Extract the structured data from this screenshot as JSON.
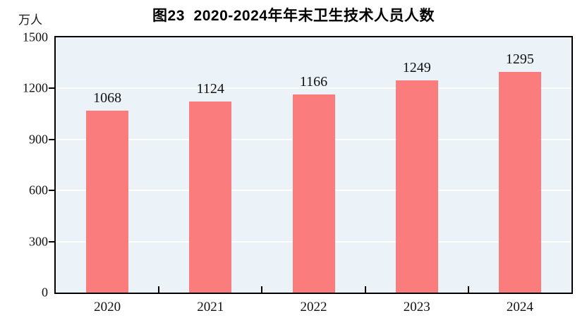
{
  "page": {
    "title": "图23  2020-2024年年末卫生技术人员人数",
    "unit_label": "万人"
  },
  "chart_data": {
    "type": "bar",
    "title": "图23  2020-2024年年末卫生技术人员人数",
    "ylabel": "万人",
    "xlabel": "",
    "categories": [
      "2020",
      "2021",
      "2022",
      "2023",
      "2024"
    ],
    "values": [
      1068,
      1124,
      1166,
      1249,
      1295
    ],
    "ylim": [
      0,
      1500
    ],
    "yticks": [
      0,
      300,
      600,
      900,
      1200,
      1500
    ],
    "grid": true,
    "legend": "none",
    "colors": {
      "bar": "#FB7C7C",
      "plot_background": "#EBF2F8",
      "gridline": "#FFFFFF",
      "axis": "#000000",
      "text": "#111111"
    }
  }
}
